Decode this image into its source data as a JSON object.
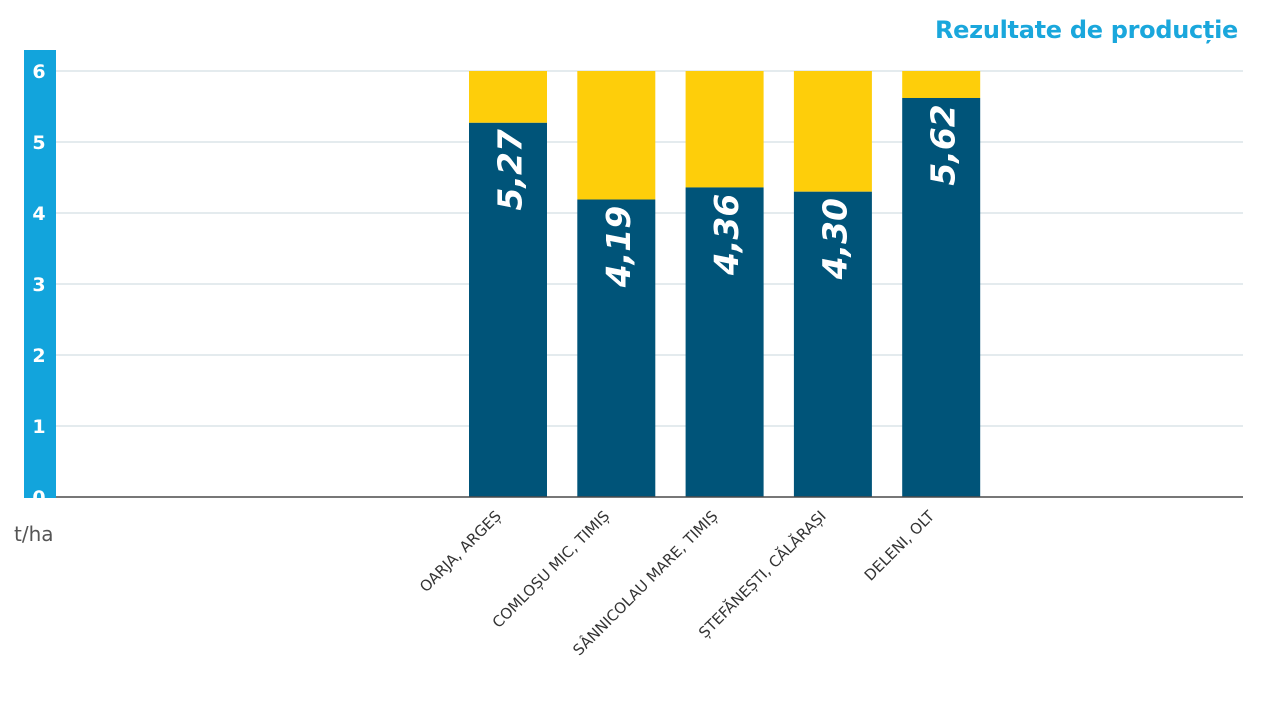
{
  "chart_data": {
    "type": "bar",
    "stacked": true,
    "title": "Rezultate de producție",
    "ylabel": "t/ha",
    "ylim": [
      0,
      6
    ],
    "yticks": [
      "0",
      "1",
      "2",
      "3",
      "4",
      "5",
      "6"
    ],
    "grid": true,
    "categories": [
      "OARJA, ARGEȘ",
      "COMLOȘU MIC, TIMIȘ",
      "SÂNNICOLAU MARE, TIMIȘ",
      "ȘTEFĂNEȘTI, CĂLĂRAȘI",
      "DELENI, OLT"
    ],
    "series": [
      {
        "values": [
          5.27,
          4.19,
          4.36,
          4.3,
          5.62
        ],
        "labels": [
          "5,27",
          "4,19",
          "4,36",
          "4,30",
          "5,62"
        ]
      },
      {
        "values": [
          0.73,
          1.81,
          1.64,
          1.7,
          0.38
        ]
      }
    ],
    "colors": {
      "title": "#1aa7dc",
      "axis_band": "#12a4dc",
      "value_series": "#005479",
      "fill_series": "#fece0a",
      "grid": "#d4dfe4",
      "baseline": "#4a4a4a"
    }
  }
}
